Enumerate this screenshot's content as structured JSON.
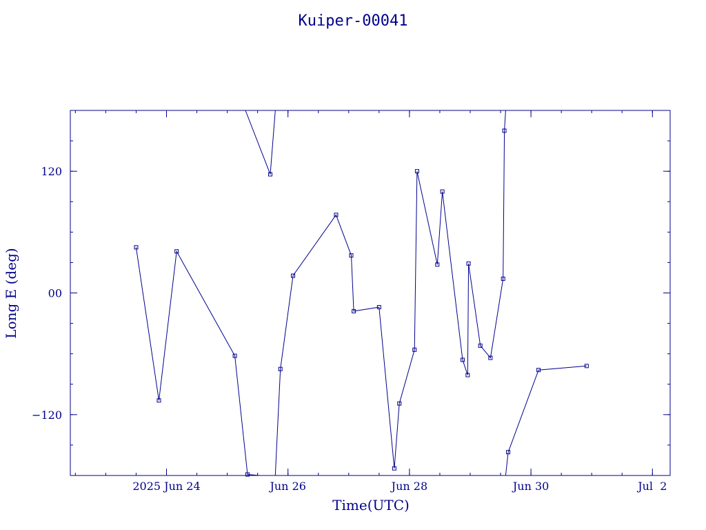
{
  "chart_data": {
    "type": "line",
    "title": "Kuiper-00041",
    "xlabel": "Time(UTC)",
    "ylabel": "Long E (deg)",
    "xlim": [
      "2025-06-22T10:00:00",
      "2025-07-02T07:00:00"
    ],
    "ylim": [
      -180,
      180
    ],
    "x_ticks": [
      {
        "label": "2025 Jun 24",
        "value": "2025-06-24T00:00:00"
      },
      {
        "label": "Jun 26",
        "value": "2025-06-26T00:00:00"
      },
      {
        "label": "Jun 28",
        "value": "2025-06-28T00:00:00"
      },
      {
        "label": "Jun 30",
        "value": "2025-06-30T00:00:00"
      },
      {
        "label": "Jul  2",
        "value": "2025-07-02T00:00:00"
      }
    ],
    "y_ticks": [
      {
        "label": "120",
        "value": 120
      },
      {
        "label": "00",
        "value": 0
      },
      {
        "label": "−120",
        "value": -120
      }
    ],
    "grid": false,
    "line_color": "#00008b",
    "series": [
      {
        "points": [
          [
            "2025-06-23T12:00:00",
            45
          ],
          [
            "2025-06-23T21:00:00",
            -106
          ],
          [
            "2025-06-24T04:00:00",
            41
          ],
          [
            "2025-06-25T03:00:00",
            -62
          ],
          [
            "2025-06-25T08:00:00",
            -179
          ],
          [
            "2025-06-25T12:48:00",
            -180
          ]
        ]
      },
      {
        "points": [
          [
            "2025-06-25T07:12:00",
            180
          ],
          [
            "2025-06-25T17:00:00",
            117
          ],
          [
            "2025-06-25T19:00:00",
            180
          ]
        ]
      },
      {
        "points": [
          [
            "2025-06-25T19:00:00",
            -180
          ],
          [
            "2025-06-25T21:00:00",
            -75
          ],
          [
            "2025-06-26T02:00:00",
            17
          ],
          [
            "2025-06-26T19:00:00",
            77
          ],
          [
            "2025-06-27T01:00:00",
            37
          ],
          [
            "2025-06-27T02:00:00",
            -18
          ],
          [
            "2025-06-27T12:00:00",
            -14
          ],
          [
            "2025-06-27T18:00:00",
            -173
          ],
          [
            "2025-06-27T20:00:00",
            -109
          ],
          [
            "2025-06-28T02:00:00",
            -56
          ],
          [
            "2025-06-28T03:00:00",
            120
          ],
          [
            "2025-06-28T11:00:00",
            28
          ],
          [
            "2025-06-28T13:00:00",
            100
          ],
          [
            "2025-06-28T21:00:00",
            -66
          ],
          [
            "2025-06-28T23:00:00",
            -81
          ],
          [
            "2025-06-28T23:20:00",
            29
          ],
          [
            "2025-06-29T04:00:00",
            -52
          ],
          [
            "2025-06-29T08:00:00",
            -64
          ],
          [
            "2025-06-29T13:00:00",
            14
          ],
          [
            "2025-06-29T13:30:00",
            160
          ],
          [
            "2025-06-29T14:00:00",
            180
          ]
        ]
      },
      {
        "points": [
          [
            "2025-06-29T14:00:00",
            -180
          ],
          [
            "2025-06-29T15:00:00",
            -157
          ],
          [
            "2025-06-30T03:00:00",
            -76
          ],
          [
            "2025-06-30T22:00:00",
            -72
          ]
        ]
      }
    ]
  }
}
